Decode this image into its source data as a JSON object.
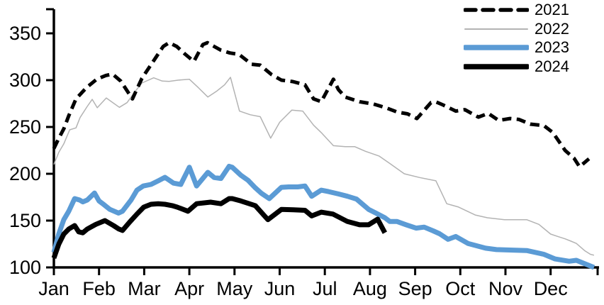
{
  "chart_data": {
    "type": "line",
    "title": "",
    "grid": false,
    "legend_position": "top-right",
    "x_axis": {
      "months": [
        "Jan",
        "Feb",
        "Mar",
        "Apr",
        "May",
        "Jun",
        "Jul",
        "Aug",
        "Sep",
        "Oct",
        "Nov",
        "Dec"
      ]
    },
    "y_axis": {
      "ticks": [
        350,
        300,
        250,
        200,
        150,
        100
      ],
      "range": [
        100,
        376
      ]
    },
    "series": [
      {
        "name": "2021",
        "color": "#000000",
        "width": 5,
        "dash": "13 7.5",
        "points": [
          [
            0,
            227
          ],
          [
            0.11,
            238
          ],
          [
            0.22,
            248
          ],
          [
            0.33,
            262
          ],
          [
            0.49,
            280
          ],
          [
            0.72,
            292
          ],
          [
            0.95,
            301
          ],
          [
            1.15,
            305
          ],
          [
            1.3,
            306.5
          ],
          [
            1.48,
            299
          ],
          [
            1.74,
            280
          ],
          [
            1.95,
            302
          ],
          [
            2.2,
            320
          ],
          [
            2.42,
            336
          ],
          [
            2.55,
            340
          ],
          [
            2.72,
            336
          ],
          [
            2.9,
            328
          ],
          [
            3.1,
            320
          ],
          [
            3.3,
            338
          ],
          [
            3.4,
            340
          ],
          [
            3.55,
            336
          ],
          [
            3.7,
            332
          ],
          [
            3.9,
            329
          ],
          [
            4.1,
            327.5
          ],
          [
            4.38,
            317
          ],
          [
            4.57,
            316
          ],
          [
            4.82,
            306
          ],
          [
            5.04,
            300
          ],
          [
            5.29,
            298.5
          ],
          [
            5.56,
            295
          ],
          [
            5.75,
            280
          ],
          [
            5.92,
            277
          ],
          [
            6.19,
            301
          ],
          [
            6.3,
            290
          ],
          [
            6.45,
            282
          ],
          [
            6.77,
            277
          ],
          [
            7.08,
            274.5
          ],
          [
            7.35,
            270.5
          ],
          [
            7.6,
            266
          ],
          [
            7.83,
            264
          ],
          [
            8.04,
            259
          ],
          [
            8.35,
            276
          ],
          [
            8.45,
            277
          ],
          [
            8.62,
            273.5
          ],
          [
            8.9,
            267
          ],
          [
            9.1,
            268.5
          ],
          [
            9.4,
            260.5
          ],
          [
            9.62,
            264.5
          ],
          [
            9.85,
            257
          ],
          [
            10.1,
            259
          ],
          [
            10.3,
            258
          ],
          [
            10.55,
            253
          ],
          [
            10.85,
            251.5
          ],
          [
            11.05,
            244
          ],
          [
            11.32,
            225
          ],
          [
            11.52,
            216.5
          ],
          [
            11.64,
            207.5
          ],
          [
            11.85,
            216
          ]
        ]
      },
      {
        "name": "2022",
        "color": "#B3B3B3",
        "width": 1.5,
        "dash": "",
        "points": [
          [
            0,
            210
          ],
          [
            0.11,
            223
          ],
          [
            0.22,
            232
          ],
          [
            0.35,
            247
          ],
          [
            0.49,
            249
          ],
          [
            0.58,
            260
          ],
          [
            0.74,
            272
          ],
          [
            0.85,
            279.5
          ],
          [
            0.96,
            270.5
          ],
          [
            1.16,
            281
          ],
          [
            1.45,
            271
          ],
          [
            1.62,
            276
          ],
          [
            1.8,
            288
          ],
          [
            1.95,
            297
          ],
          [
            2.21,
            302.5
          ],
          [
            2.4,
            299
          ],
          [
            2.55,
            298.7
          ],
          [
            2.75,
            300
          ],
          [
            3,
            301
          ],
          [
            3.2,
            292
          ],
          [
            3.41,
            282
          ],
          [
            3.6,
            288
          ],
          [
            3.78,
            295
          ],
          [
            3.91,
            303
          ],
          [
            4.11,
            267
          ],
          [
            4.35,
            263
          ],
          [
            4.57,
            261
          ],
          [
            4.8,
            238
          ],
          [
            5,
            255
          ],
          [
            5.27,
            268
          ],
          [
            5.51,
            267
          ],
          [
            5.75,
            252
          ],
          [
            5.92,
            244
          ],
          [
            6.19,
            230
          ],
          [
            6.45,
            229
          ],
          [
            6.66,
            229
          ],
          [
            6.9,
            224
          ],
          [
            7.2,
            219
          ],
          [
            7.44,
            211
          ],
          [
            7.76,
            200
          ],
          [
            8.1,
            196
          ],
          [
            8.46,
            192.5
          ],
          [
            8.7,
            168
          ],
          [
            8.96,
            164.5
          ],
          [
            9.33,
            156
          ],
          [
            9.6,
            153
          ],
          [
            9.98,
            151
          ],
          [
            10.47,
            151
          ],
          [
            10.74,
            146
          ],
          [
            11,
            135.6
          ],
          [
            11.16,
            133
          ],
          [
            11.32,
            130.5
          ],
          [
            11.45,
            128
          ],
          [
            11.57,
            125.6
          ],
          [
            11.75,
            118
          ],
          [
            11.88,
            114
          ],
          [
            11.96,
            113
          ]
        ]
      },
      {
        "name": "2023",
        "color": "#5B9BD5",
        "width": 7,
        "dash": "",
        "points": [
          [
            0,
            116
          ],
          [
            0.11,
            136
          ],
          [
            0.22,
            151
          ],
          [
            0.33,
            160
          ],
          [
            0.46,
            173.5
          ],
          [
            0.57,
            172
          ],
          [
            0.64,
            170
          ],
          [
            0.74,
            172
          ],
          [
            0.9,
            179.5
          ],
          [
            1,
            171
          ],
          [
            1.11,
            167
          ],
          [
            1.24,
            162
          ],
          [
            1.43,
            158
          ],
          [
            1.52,
            160
          ],
          [
            1.71,
            172
          ],
          [
            1.84,
            182.5
          ],
          [
            1.98,
            187
          ],
          [
            2.15,
            188.6
          ],
          [
            2.31,
            192.4
          ],
          [
            2.46,
            196.2
          ],
          [
            2.65,
            190
          ],
          [
            2.81,
            188.6
          ],
          [
            3,
            207
          ],
          [
            3.16,
            187
          ],
          [
            3.41,
            201.5
          ],
          [
            3.55,
            196
          ],
          [
            3.7,
            195
          ],
          [
            3.88,
            208
          ],
          [
            3.95,
            207
          ],
          [
            4.14,
            198.5
          ],
          [
            4.3,
            193
          ],
          [
            4.46,
            185
          ],
          [
            4.6,
            179
          ],
          [
            4.77,
            173.5
          ],
          [
            5.04,
            185.5
          ],
          [
            5.2,
            186
          ],
          [
            5.4,
            186
          ],
          [
            5.56,
            187
          ],
          [
            5.71,
            176
          ],
          [
            5.92,
            182.5
          ],
          [
            6.08,
            181
          ],
          [
            6.3,
            178.5
          ],
          [
            6.5,
            176
          ],
          [
            6.7,
            173
          ],
          [
            6.97,
            162
          ],
          [
            7.13,
            158
          ],
          [
            7.33,
            153
          ],
          [
            7.44,
            149
          ],
          [
            7.6,
            149
          ],
          [
            7.8,
            145.5
          ],
          [
            8.02,
            142
          ],
          [
            8.2,
            143
          ],
          [
            8.4,
            139
          ],
          [
            8.54,
            136
          ],
          [
            8.73,
            130
          ],
          [
            8.9,
            133
          ],
          [
            9.17,
            125.6
          ],
          [
            9.56,
            120.5
          ],
          [
            9.8,
            119
          ],
          [
            10.16,
            118.5
          ],
          [
            10.47,
            118
          ],
          [
            10.85,
            114
          ],
          [
            11.1,
            109
          ],
          [
            11.41,
            106.6
          ],
          [
            11.57,
            107.6
          ],
          [
            11.88,
            101.5
          ],
          [
            11.96,
            100
          ]
        ]
      },
      {
        "name": "2024",
        "color": "#000000",
        "width": 7,
        "dash": "",
        "points": [
          [
            0,
            110
          ],
          [
            0.11,
            125
          ],
          [
            0.22,
            135.6
          ],
          [
            0.33,
            141
          ],
          [
            0.46,
            144.7
          ],
          [
            0.55,
            138
          ],
          [
            0.64,
            137
          ],
          [
            0.74,
            141
          ],
          [
            0.93,
            146
          ],
          [
            1.13,
            150
          ],
          [
            1.32,
            144.7
          ],
          [
            1.44,
            141
          ],
          [
            1.52,
            139.5
          ],
          [
            1.68,
            148.5
          ],
          [
            1.84,
            157
          ],
          [
            1.99,
            164.4
          ],
          [
            2.15,
            167.4
          ],
          [
            2.31,
            168
          ],
          [
            2.46,
            167.4
          ],
          [
            2.62,
            166
          ],
          [
            2.73,
            164.4
          ],
          [
            2.97,
            160
          ],
          [
            3.16,
            168
          ],
          [
            3.47,
            169.7
          ],
          [
            3.7,
            168
          ],
          [
            3.88,
            173.5
          ],
          [
            3.95,
            173.5
          ],
          [
            4.14,
            171
          ],
          [
            4.46,
            166
          ],
          [
            4.74,
            151
          ],
          [
            5.04,
            162
          ],
          [
            5.3,
            161.5
          ],
          [
            5.56,
            161
          ],
          [
            5.71,
            155
          ],
          [
            5.92,
            159
          ],
          [
            6.18,
            157
          ],
          [
            6.5,
            149
          ],
          [
            6.77,
            145.5
          ],
          [
            6.97,
            145.5
          ],
          [
            7.17,
            151.5
          ],
          [
            7.33,
            137
          ]
        ]
      }
    ]
  }
}
